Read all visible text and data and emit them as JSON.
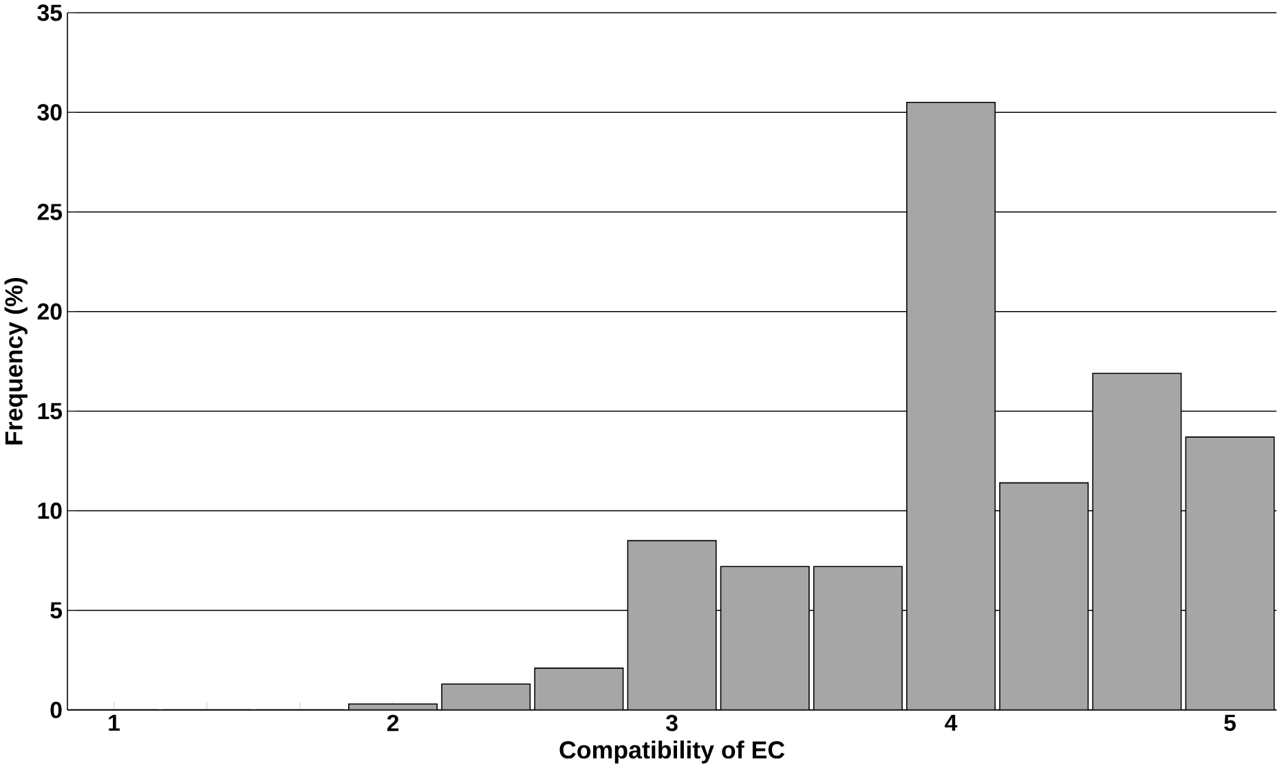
{
  "chart_data": {
    "type": "bar",
    "xlabel": "Compatibility of EC",
    "ylabel": "Frequency (%)",
    "categories": [
      "1",
      null,
      null,
      "2",
      null,
      null,
      "3",
      null,
      null,
      "4",
      null,
      null,
      "5"
    ],
    "values": [
      0,
      0,
      0,
      0.3,
      1.3,
      2.1,
      8.5,
      7.2,
      7.2,
      30.5,
      11.4,
      16.9,
      13.7
    ],
    "color": "#a6a6a6",
    "ylim": [
      0,
      35
    ],
    "yticks": [
      0,
      5,
      10,
      15,
      20,
      25,
      30,
      35
    ],
    "grid": "y"
  }
}
